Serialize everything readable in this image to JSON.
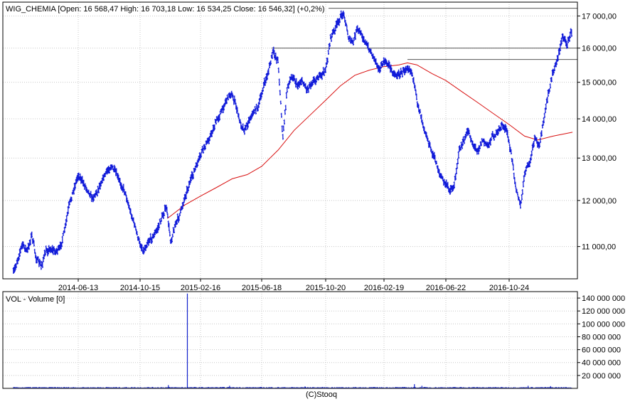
{
  "footer": "(C)Stooq",
  "colors": {
    "price": "#0a14d8",
    "moving_average": "#d81010",
    "volume": "#1020cc",
    "grid": "#c8c8c8",
    "hline": "#555555",
    "frame": "#000000"
  },
  "chart_data": [
    {
      "type": "ohlc",
      "header": "WIG_CHEMIA [Open: 16 568,47  High: 16 703,18  Low: 16 534,25  Close: 16 546,32] (+0,2%)",
      "y_scale": "log",
      "ylim": [
        10350,
        17450
      ],
      "y_ticks": [
        {
          "value": 11000,
          "label": "11 000,00"
        },
        {
          "value": 12000,
          "label": "12 000,00"
        },
        {
          "value": 13000,
          "label": "13 000,00"
        },
        {
          "value": 14000,
          "label": "14 000,00"
        },
        {
          "value": 15000,
          "label": "15 000,00"
        },
        {
          "value": 16000,
          "label": "16 000,00"
        },
        {
          "value": 17000,
          "label": "17 000,00"
        }
      ],
      "x_ticks": [
        "2014-06-13",
        "2014-10-15",
        "2015-02-16",
        "2015-06-18",
        "2015-10-20",
        "2016-02-19",
        "2016-06-22",
        "2016-10-24"
      ],
      "grid": true,
      "horizontal_lines": [
        {
          "value": 17250,
          "from_date": "2015-10-26"
        },
        {
          "value": 16000,
          "from_date": "2015-07-07"
        },
        {
          "value": 15660,
          "from_date": "2016-04-06"
        }
      ],
      "close_series": [
        [
          "2014-02-03",
          10450
        ],
        [
          "2014-02-12",
          10750
        ],
        [
          "2014-02-21",
          11050
        ],
        [
          "2014-03-03",
          10900
        ],
        [
          "2014-03-12",
          11250
        ],
        [
          "2014-03-21",
          10750
        ],
        [
          "2014-03-31",
          10600
        ],
        [
          "2014-04-09",
          10900
        ],
        [
          "2014-04-18",
          10950
        ],
        [
          "2014-04-28",
          10900
        ],
        [
          "2014-05-07",
          10950
        ],
        [
          "2014-05-16",
          11300
        ],
        [
          "2014-05-26",
          11900
        ],
        [
          "2014-06-04",
          12250
        ],
        [
          "2014-06-13",
          12600
        ],
        [
          "2014-06-23",
          12400
        ],
        [
          "2014-07-02",
          12250
        ],
        [
          "2014-07-11",
          12050
        ],
        [
          "2014-07-21",
          12200
        ],
        [
          "2014-07-30",
          12450
        ],
        [
          "2014-08-08",
          12650
        ],
        [
          "2014-08-18",
          12800
        ],
        [
          "2014-08-27",
          12650
        ],
        [
          "2014-09-05",
          12400
        ],
        [
          "2014-09-15",
          12200
        ],
        [
          "2014-09-24",
          11800
        ],
        [
          "2014-10-03",
          11500
        ],
        [
          "2014-10-13",
          11100
        ],
        [
          "2014-10-22",
          10900
        ],
        [
          "2014-10-31",
          11100
        ],
        [
          "2014-11-10",
          11200
        ],
        [
          "2014-11-19",
          11350
        ],
        [
          "2014-11-28",
          11600
        ],
        [
          "2014-12-08",
          11850
        ],
        [
          "2014-12-17",
          11100
        ],
        [
          "2014-12-26",
          11450
        ],
        [
          "2015-01-05",
          11700
        ],
        [
          "2015-01-14",
          12050
        ],
        [
          "2015-01-23",
          12350
        ],
        [
          "2015-02-02",
          12650
        ],
        [
          "2015-02-11",
          12900
        ],
        [
          "2015-02-20",
          13200
        ],
        [
          "2015-03-02",
          13400
        ],
        [
          "2015-03-11",
          13650
        ],
        [
          "2015-03-20",
          13950
        ],
        [
          "2015-03-30",
          14200
        ],
        [
          "2015-04-08",
          14500
        ],
        [
          "2015-04-17",
          14700
        ],
        [
          "2015-04-27",
          14400
        ],
        [
          "2015-05-06",
          13900
        ],
        [
          "2015-05-15",
          13700
        ],
        [
          "2015-05-25",
          14000
        ],
        [
          "2015-06-03",
          14200
        ],
        [
          "2015-06-12",
          14350
        ],
        [
          "2015-06-22",
          14900
        ],
        [
          "2015-07-01",
          15300
        ],
        [
          "2015-07-10",
          15900
        ],
        [
          "2015-07-20",
          15600
        ],
        [
          "2015-07-29",
          13500
        ],
        [
          "2015-08-07",
          14900
        ],
        [
          "2015-08-17",
          15200
        ],
        [
          "2015-08-26",
          14900
        ],
        [
          "2015-09-04",
          15050
        ],
        [
          "2015-09-14",
          14800
        ],
        [
          "2015-09-23",
          15000
        ],
        [
          "2015-10-02",
          15100
        ],
        [
          "2015-10-12",
          15200
        ],
        [
          "2015-10-21",
          15400
        ],
        [
          "2015-10-30",
          16300
        ],
        [
          "2015-11-09",
          16600
        ],
        [
          "2015-11-18",
          16900
        ],
        [
          "2015-11-27",
          17100
        ],
        [
          "2015-12-07",
          16300
        ],
        [
          "2015-12-16",
          16150
        ],
        [
          "2015-12-25",
          16600
        ],
        [
          "2016-01-04",
          16400
        ],
        [
          "2016-01-13",
          16100
        ],
        [
          "2016-01-22",
          15900
        ],
        [
          "2016-02-01",
          15650
        ],
        [
          "2016-02-10",
          15350
        ],
        [
          "2016-02-19",
          15600
        ],
        [
          "2016-02-29",
          15500
        ],
        [
          "2016-03-09",
          15250
        ],
        [
          "2016-03-18",
          15200
        ],
        [
          "2016-03-28",
          15300
        ],
        [
          "2016-04-06",
          15450
        ],
        [
          "2016-04-15",
          15300
        ],
        [
          "2016-04-25",
          14500
        ],
        [
          "2016-05-04",
          14050
        ],
        [
          "2016-05-13",
          13600
        ],
        [
          "2016-05-23",
          13200
        ],
        [
          "2016-06-01",
          12950
        ],
        [
          "2016-06-10",
          12600
        ],
        [
          "2016-06-20",
          12400
        ],
        [
          "2016-06-29",
          12250
        ],
        [
          "2016-07-08",
          12300
        ],
        [
          "2016-07-18",
          13200
        ],
        [
          "2016-07-27",
          13400
        ],
        [
          "2016-08-05",
          13700
        ],
        [
          "2016-08-15",
          13300
        ],
        [
          "2016-08-24",
          13200
        ],
        [
          "2016-09-02",
          13450
        ],
        [
          "2016-09-12",
          13300
        ],
        [
          "2016-09-21",
          13550
        ],
        [
          "2016-09-30",
          13600
        ],
        [
          "2016-10-10",
          13850
        ],
        [
          "2016-10-19",
          13700
        ],
        [
          "2016-10-28",
          13100
        ],
        [
          "2016-11-07",
          12300
        ],
        [
          "2016-11-16",
          11850
        ],
        [
          "2016-11-25",
          12700
        ],
        [
          "2016-12-05",
          12900
        ],
        [
          "2016-12-14",
          13500
        ],
        [
          "2016-12-23",
          13300
        ],
        [
          "2017-01-02",
          14000
        ],
        [
          "2017-01-11",
          14700
        ],
        [
          "2017-01-20",
          15300
        ],
        [
          "2017-01-30",
          15700
        ],
        [
          "2017-02-08",
          16400
        ],
        [
          "2017-02-17",
          16100
        ],
        [
          "2017-02-27",
          16550
        ]
      ],
      "moving_average": [
        [
          "2014-12-10",
          11600
        ],
        [
          "2015-01-15",
          11900
        ],
        [
          "2015-02-16",
          12100
        ],
        [
          "2015-03-20",
          12300
        ],
        [
          "2015-04-20",
          12500
        ],
        [
          "2015-05-20",
          12600
        ],
        [
          "2015-06-18",
          12800
        ],
        [
          "2015-07-20",
          13200
        ],
        [
          "2015-08-20",
          13700
        ],
        [
          "2015-09-20",
          14100
        ],
        [
          "2015-10-20",
          14500
        ],
        [
          "2015-11-20",
          14900
        ],
        [
          "2015-12-20",
          15200
        ],
        [
          "2016-01-20",
          15350
        ],
        [
          "2016-02-19",
          15450
        ],
        [
          "2016-03-20",
          15500
        ],
        [
          "2016-04-06",
          15560
        ],
        [
          "2016-04-25",
          15500
        ],
        [
          "2016-05-25",
          15250
        ],
        [
          "2016-06-22",
          15050
        ],
        [
          "2016-07-22",
          14750
        ],
        [
          "2016-08-22",
          14450
        ],
        [
          "2016-09-22",
          14150
        ],
        [
          "2016-10-24",
          13850
        ],
        [
          "2016-11-24",
          13550
        ],
        [
          "2016-12-20",
          13450
        ],
        [
          "2017-01-20",
          13550
        ],
        [
          "2017-02-28",
          13650
        ]
      ]
    },
    {
      "type": "bar",
      "title": "VOL - Volume [0]",
      "ylim": [
        0,
        150000000
      ],
      "y_ticks": [
        {
          "value": 20000000,
          "label": "20 000 000"
        },
        {
          "value": 40000000,
          "label": "40 000 000"
        },
        {
          "value": 60000000,
          "label": "60 000 000"
        },
        {
          "value": 80000000,
          "label": "80 000 000"
        },
        {
          "value": 100000000,
          "label": "100 000 000"
        },
        {
          "value": 120000000,
          "label": "120 000 000"
        },
        {
          "value": 140000000,
          "label": "140 000 000"
        }
      ],
      "baseline": 1500000,
      "spikes": [
        [
          "2014-12-12",
          5000000
        ],
        [
          "2015-01-20",
          147000000
        ],
        [
          "2015-04-15",
          4000000
        ],
        [
          "2015-09-10",
          3000000
        ],
        [
          "2016-04-20",
          6500000
        ],
        [
          "2016-05-05",
          4000000
        ],
        [
          "2016-12-01",
          4000000
        ],
        [
          "2017-01-15",
          3500000
        ]
      ]
    }
  ]
}
